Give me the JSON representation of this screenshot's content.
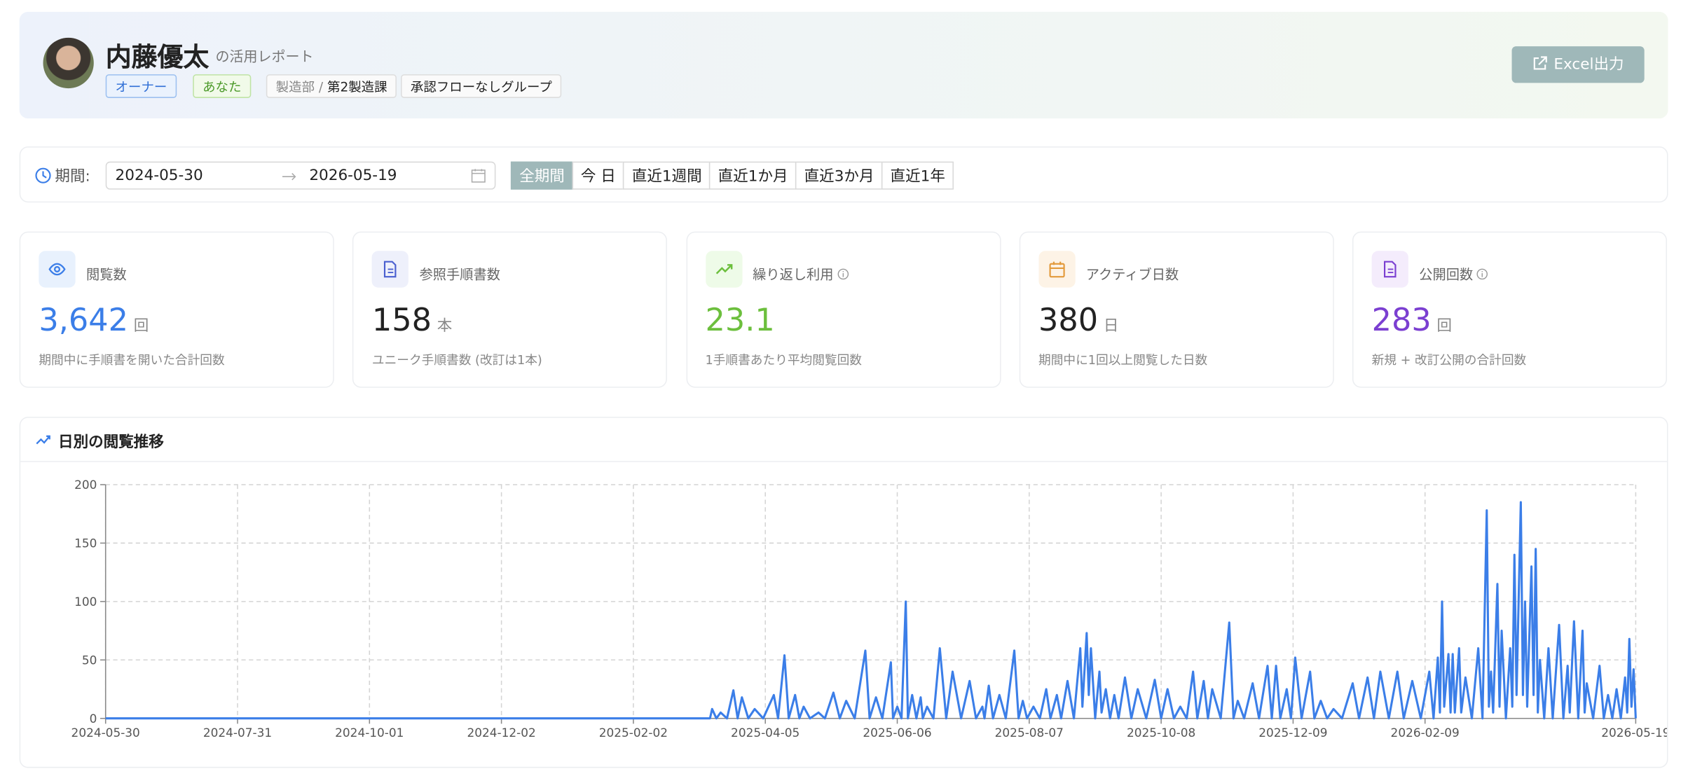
{
  "header": {
    "name": "内藤優太",
    "subtitle": "の活用レポート",
    "tags": [
      "オーナー",
      "あなた"
    ],
    "department": "製造部 /",
    "section": "第2製造課",
    "group": "承認フローなしグループ",
    "export_button": "Excel出力"
  },
  "filter": {
    "label": "期間:",
    "start": "2024-05-30",
    "end": "2026-05-19",
    "presets": [
      "全期間",
      "今 日",
      "直近1週間",
      "直近1か月",
      "直近3か月",
      "直近1年"
    ],
    "active_preset": 0
  },
  "stats": [
    {
      "label": "閲覧数",
      "value": "3,642",
      "unit": "回",
      "note": "期間中に手順書を開いた合計回数",
      "color": "#3b7ee8"
    },
    {
      "label": "参照手順書数",
      "value": "158",
      "unit": "本",
      "note": "ユニーク手順書数 (改訂は1本)",
      "color": "#222222"
    },
    {
      "label": "繰り返し利用",
      "value": "23.1",
      "unit": null,
      "note": "1手順書あたり平均閲覧回数",
      "color": "#6cbf3d"
    },
    {
      "label": "アクティブ日数",
      "value": "380",
      "unit": "日",
      "note": "期間中に1回以上閲覧した日数",
      "color": "#222222"
    },
    {
      "label": "公開回数",
      "value": "283",
      "unit": "回",
      "note": "新規 + 改訂公開の合計回数",
      "color": "#7b3fd1"
    }
  ],
  "chart_data": {
    "type": "line",
    "title": "日別の閲覧推移",
    "color": "#3b7ee8",
    "grid": true,
    "xlim": [
      "2024-05-30",
      "2026-05-19"
    ],
    "ylim": [
      0,
      200
    ],
    "xticks": [
      "2024-05-30",
      "2024-07-31",
      "2024-10-01",
      "2024-12-02",
      "2025-02-02",
      "2025-04-05",
      "2025-06-06",
      "2025-08-07",
      "2025-10-08",
      "2025-12-09",
      "2026-02-09",
      "2026-05-19"
    ],
    "yticks": [
      0,
      50,
      100,
      150,
      200
    ],
    "x": [
      "2024-05-30",
      "2025-03-10",
      "2025-03-11",
      "2025-03-13",
      "2025-03-15",
      "2025-03-18",
      "2025-03-21",
      "2025-03-23",
      "2025-03-25",
      "2025-03-28",
      "2025-03-31",
      "2025-04-04",
      "2025-04-09",
      "2025-04-11",
      "2025-04-14",
      "2025-04-16",
      "2025-04-19",
      "2025-04-21",
      "2025-04-23",
      "2025-04-26",
      "2025-04-30",
      "2025-05-03",
      "2025-05-07",
      "2025-05-10",
      "2025-05-13",
      "2025-05-17",
      "2025-05-22",
      "2025-05-24",
      "2025-05-27",
      "2025-05-30",
      "2025-06-03",
      "2025-06-04",
      "2025-06-06",
      "2025-06-08",
      "2025-06-10",
      "2025-06-11",
      "2025-06-13",
      "2025-06-15",
      "2025-06-17",
      "2025-06-18",
      "2025-06-20",
      "2025-06-23",
      "2025-06-26",
      "2025-06-29",
      "2025-07-02",
      "2025-07-06",
      "2025-07-10",
      "2025-07-13",
      "2025-07-16",
      "2025-07-17",
      "2025-07-19",
      "2025-07-21",
      "2025-07-24",
      "2025-07-27",
      "2025-07-31",
      "2025-08-02",
      "2025-08-04",
      "2025-08-06",
      "2025-08-09",
      "2025-08-12",
      "2025-08-15",
      "2025-08-17",
      "2025-08-20",
      "2025-08-22",
      "2025-08-25",
      "2025-08-28",
      "2025-08-31",
      "2025-09-01",
      "2025-09-03",
      "2025-09-04",
      "2025-09-05",
      "2025-09-07",
      "2025-09-09",
      "2025-09-10",
      "2025-09-12",
      "2025-09-14",
      "2025-09-16",
      "2025-09-18",
      "2025-09-21",
      "2025-09-24",
      "2025-09-27",
      "2025-10-01",
      "2025-10-05",
      "2025-10-08",
      "2025-10-11",
      "2025-10-14",
      "2025-10-17",
      "2025-10-20",
      "2025-10-23",
      "2025-10-25",
      "2025-10-28",
      "2025-10-30",
      "2025-11-01",
      "2025-11-05",
      "2025-11-09",
      "2025-11-11",
      "2025-11-13",
      "2025-11-16",
      "2025-11-20",
      "2025-11-23",
      "2025-11-27",
      "2025-11-29",
      "2025-12-01",
      "2025-12-03",
      "2025-12-06",
      "2025-12-08",
      "2025-12-10",
      "2025-12-13",
      "2025-12-17",
      "2025-12-19",
      "2025-12-22",
      "2025-12-25",
      "2025-12-28",
      "2026-01-01",
      "2026-01-06",
      "2026-01-09",
      "2026-01-13",
      "2026-01-16",
      "2026-01-19",
      "2026-01-23",
      "2026-01-27",
      "2026-01-30",
      "2026-02-03",
      "2026-02-07",
      "2026-02-11",
      "2026-02-13",
      "2026-02-15",
      "2026-02-16",
      "2026-02-17",
      "2026-02-18",
      "2026-02-20",
      "2026-02-21",
      "2026-02-22",
      "2026-02-23",
      "2026-02-25",
      "2026-02-26",
      "2026-02-28",
      "2026-03-03",
      "2026-03-06",
      "2026-03-08",
      "2026-03-10",
      "2026-03-11",
      "2026-03-12",
      "2026-03-13",
      "2026-03-15",
      "2026-03-16",
      "2026-03-17",
      "2026-03-19",
      "2026-03-21",
      "2026-03-22",
      "2026-03-23",
      "2026-03-24",
      "2026-03-26",
      "2026-03-27",
      "2026-03-28",
      "2026-03-29",
      "2026-03-31",
      "2026-04-01",
      "2026-04-02",
      "2026-04-03",
      "2026-04-04",
      "2026-04-06",
      "2026-04-08",
      "2026-04-10",
      "2026-04-13",
      "2026-04-15",
      "2026-04-17",
      "2026-04-18",
      "2026-04-20",
      "2026-04-22",
      "2026-04-24",
      "2026-04-25",
      "2026-04-26",
      "2026-04-29",
      "2026-05-02",
      "2026-05-04",
      "2026-05-06",
      "2026-05-08",
      "2026-05-10",
      "2026-05-12",
      "2026-05-14",
      "2026-05-15",
      "2026-05-16",
      "2026-05-17",
      "2026-05-18",
      "2026-05-19"
    ],
    "values": [
      0,
      0,
      8,
      0,
      5,
      0,
      24,
      0,
      18,
      0,
      8,
      0,
      20,
      0,
      54,
      0,
      20,
      0,
      10,
      0,
      5,
      0,
      22,
      0,
      15,
      0,
      58,
      0,
      18,
      0,
      48,
      0,
      10,
      0,
      100,
      0,
      20,
      0,
      18,
      0,
      10,
      0,
      60,
      0,
      40,
      0,
      32,
      0,
      10,
      0,
      28,
      0,
      20,
      0,
      58,
      0,
      15,
      0,
      10,
      0,
      25,
      0,
      20,
      0,
      32,
      0,
      60,
      10,
      73,
      20,
      60,
      0,
      40,
      5,
      25,
      0,
      20,
      0,
      35,
      0,
      25,
      0,
      33,
      0,
      25,
      0,
      10,
      0,
      40,
      0,
      32,
      0,
      25,
      0,
      82,
      0,
      15,
      0,
      30,
      0,
      45,
      0,
      45,
      0,
      25,
      0,
      52,
      0,
      40,
      0,
      15,
      0,
      8,
      0,
      30,
      0,
      35,
      0,
      40,
      0,
      40,
      0,
      32,
      0,
      40,
      0,
      52,
      5,
      100,
      10,
      55,
      5,
      55,
      5,
      60,
      5,
      35,
      0,
      60,
      0,
      178,
      10,
      40,
      5,
      115,
      10,
      75,
      0,
      60,
      10,
      140,
      20,
      185,
      20,
      100,
      10,
      130,
      20,
      145,
      5,
      50,
      0,
      60,
      0,
      80,
      0,
      45,
      5,
      83,
      0,
      75,
      5,
      30,
      0,
      45,
      0,
      20,
      0,
      25,
      0,
      35,
      5,
      68,
      10,
      42,
      0
    ]
  }
}
